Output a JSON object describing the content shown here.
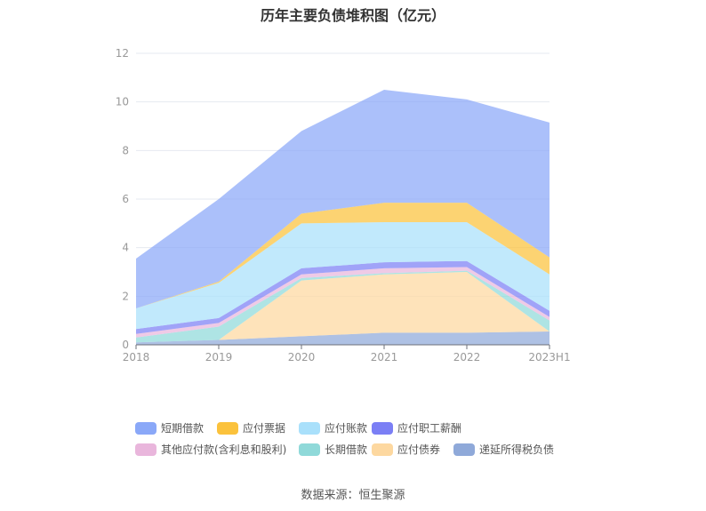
{
  "chart_data": {
    "type": "area",
    "stacked": true,
    "title": "历年主要负债堆积图（亿元）",
    "xlabel": "",
    "ylabel": "",
    "ylim": [
      0,
      12
    ],
    "yticks": [
      "0",
      "2",
      "4",
      "6",
      "8",
      "10",
      "12"
    ],
    "categories": [
      "2018",
      "2019",
      "2020",
      "2021",
      "2022",
      "2023H1"
    ],
    "grid": true,
    "legend_position": "bottom",
    "series": [
      {
        "name": "递延所得税负债",
        "color": "#8fa9d9",
        "values": [
          0.1,
          0.2,
          0.35,
          0.5,
          0.5,
          0.55
        ]
      },
      {
        "name": "应付债券",
        "color": "#fdd8a0",
        "values": [
          0,
          0,
          2.3,
          2.4,
          2.5,
          0
        ]
      },
      {
        "name": "长期借款",
        "color": "#8fd9d9",
        "values": [
          0.2,
          0.55,
          0.1,
          0.05,
          0.05,
          0.45
        ]
      },
      {
        "name": "其他应付款(含利息和股利)",
        "color": "#e9b6dc",
        "values": [
          0.15,
          0.15,
          0.15,
          0.2,
          0.15,
          0.15
        ]
      },
      {
        "name": "应付职工薪酬",
        "color": "#7b7ff5",
        "values": [
          0.2,
          0.2,
          0.25,
          0.25,
          0.25,
          0.25
        ]
      },
      {
        "name": "应付账款",
        "color": "#a9e0fb",
        "values": [
          0.85,
          1.45,
          1.85,
          1.65,
          1.6,
          1.5
        ]
      },
      {
        "name": "应付票据",
        "color": "#fbc23c",
        "values": [
          0,
          0.05,
          0.4,
          0.8,
          0.8,
          0.7
        ]
      },
      {
        "name": "短期借款",
        "color": "#8aa8f8",
        "values": [
          2.05,
          3.4,
          3.4,
          4.65,
          4.25,
          5.55
        ]
      }
    ],
    "legend_order": [
      "短期借款",
      "应付票据",
      "应付账款",
      "应付职工薪酬",
      "其他应付款(含利息和股利)",
      "长期借款",
      "应付债券",
      "递延所得税负债"
    ]
  },
  "source": "数据来源：恒生聚源"
}
